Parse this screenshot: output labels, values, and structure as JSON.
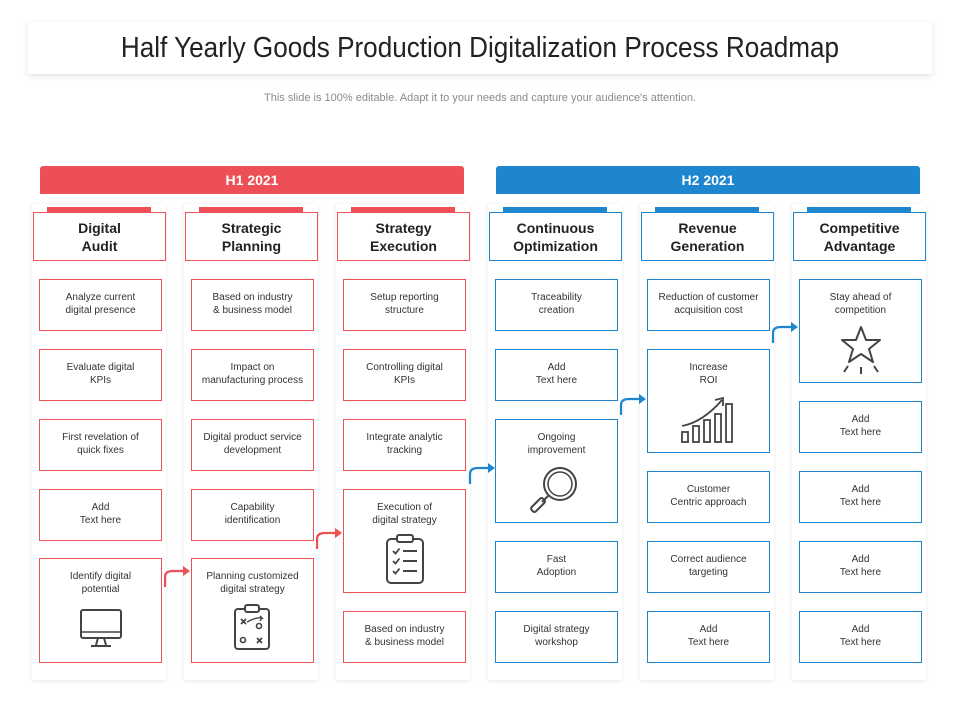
{
  "title": "Half Yearly Goods Production Digitalization Process Roadmap",
  "subtitle": "This slide is 100% editable. Adapt it to your needs and capture your audience's attention.",
  "colors": {
    "h1": "#ec4f55",
    "h2": "#1e86cf"
  },
  "periods": [
    {
      "label": "H1 2021"
    },
    {
      "label": "H2 2021"
    }
  ],
  "columns": [
    {
      "header": "Digital\nAudit",
      "items": [
        "Analyze current\ndigital presence",
        "Evaluate digital\nKPIs",
        "First revelation of\nquick fixes",
        "Add\nText here",
        "Identify digital\npotential"
      ]
    },
    {
      "header": "Strategic\nPlanning",
      "items": [
        "Based on industry\n& business model",
        "Impact on\nmanufacturing process",
        "Digital product service\ndevelopment",
        "Capability\nidentification",
        "Planning customized\ndigital strategy"
      ]
    },
    {
      "header": "Strategy\nExecution",
      "items": [
        "Setup reporting\nstructure",
        "Controlling digital\nKPIs",
        "Integrate analytic\ntracking",
        "Execution of\ndigital strategy",
        "Based on industry\n& business model"
      ]
    },
    {
      "header": "Continuous\nOptimization",
      "items": [
        "Traceability\ncreation",
        "Add\nText here",
        "Ongoing\nimprovement",
        "Fast\nAdoption",
        "Digital strategy\nworkshop"
      ]
    },
    {
      "header": "Revenue\nGeneration",
      "items": [
        "Reduction of customer\nacquisition cost",
        "Increase\nROI",
        "Customer\nCentric approach",
        "Correct audience\ntargeting",
        "Add\nText here"
      ]
    },
    {
      "header": "Competitive\nAdvantage",
      "items": [
        "Stay ahead of\ncompetition",
        "Add\nText here",
        "Add\nText here",
        "Add\nText here",
        "Add\nText here"
      ]
    }
  ],
  "icons": [
    "monitor-icon",
    "strategy-board-icon",
    "checklist-icon",
    "magnifier-icon",
    "growth-chart-icon",
    "star-icon"
  ]
}
